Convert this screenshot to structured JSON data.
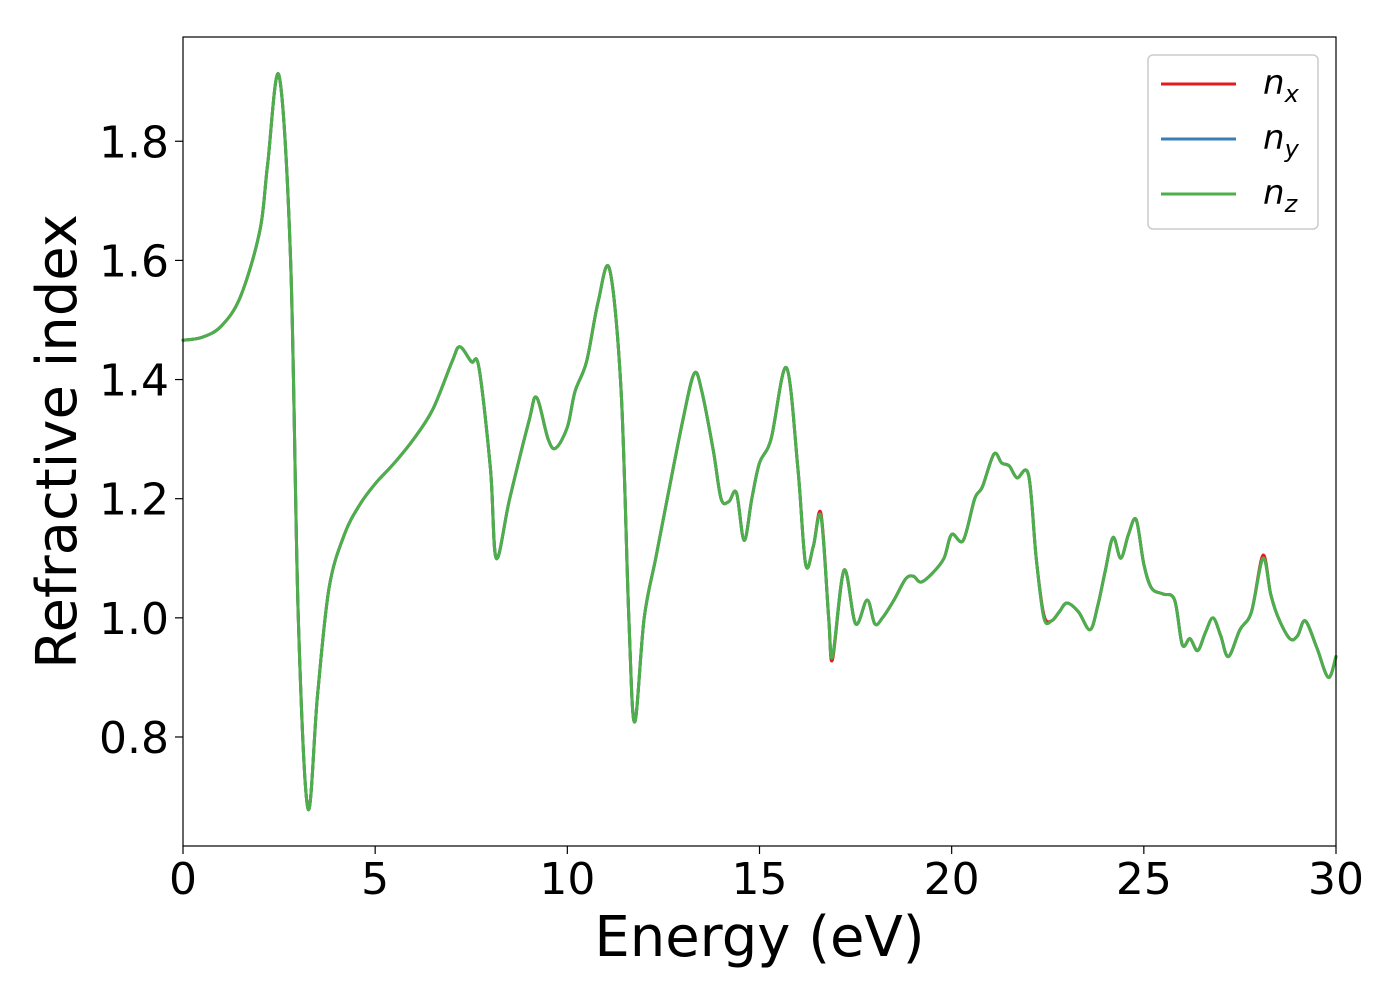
{
  "chart_data": {
    "type": "line",
    "xlabel": "Energy (eV)",
    "ylabel": "Refractive index",
    "xlim": [
      0,
      30
    ],
    "ylim": [
      0.617,
      1.975
    ],
    "xticks": [
      0,
      5,
      10,
      15,
      20,
      25,
      30
    ],
    "xtick_labels": [
      "0",
      "5",
      "10",
      "15",
      "20",
      "25",
      "30"
    ],
    "yticks": [
      0.8,
      1.0,
      1.2,
      1.4,
      1.6,
      1.8
    ],
    "ytick_labels": [
      "0.8",
      "1.0",
      "1.2",
      "1.4",
      "1.6",
      "1.8"
    ],
    "grid": false,
    "legend_position": "top-right",
    "series": [
      {
        "name": "n_x",
        "label_base": "n",
        "label_sub": "x",
        "color": "#e41a1c",
        "x": [
          0,
          0.5,
          1.0,
          1.5,
          2.0,
          2.2,
          2.5,
          2.8,
          3.0,
          3.25,
          3.5,
          3.8,
          4.2,
          4.6,
          5.0,
          5.5,
          6.0,
          6.5,
          7.0,
          7.2,
          7.5,
          7.7,
          8.0,
          8.15,
          8.5,
          9.0,
          9.2,
          9.5,
          9.7,
          10.0,
          10.2,
          10.5,
          10.8,
          11.1,
          11.4,
          11.6,
          11.75,
          12.0,
          12.3,
          12.6,
          13.0,
          13.3,
          13.5,
          13.8,
          14.0,
          14.2,
          14.4,
          14.6,
          14.8,
          15.0,
          15.3,
          15.7,
          16.0,
          16.2,
          16.4,
          16.6,
          16.8,
          16.9,
          17.2,
          17.5,
          17.8,
          18.0,
          18.2,
          18.5,
          18.8,
          19.0,
          19.2,
          19.5,
          19.8,
          20.0,
          20.3,
          20.6,
          20.8,
          21.1,
          21.3,
          21.5,
          21.7,
          22.0,
          22.2,
          22.4,
          22.6,
          22.8,
          23.0,
          23.3,
          23.6,
          23.8,
          24.0,
          24.2,
          24.4,
          24.6,
          24.8,
          25.0,
          25.2,
          25.5,
          25.8,
          26.0,
          26.2,
          26.4,
          26.6,
          26.8,
          27.0,
          27.2,
          27.5,
          27.8,
          28.1,
          28.3,
          28.5,
          28.8,
          29.0,
          29.2,
          29.5,
          29.8,
          30.0
        ],
        "y": [
          1.466,
          1.471,
          1.49,
          1.54,
          1.65,
          1.76,
          1.91,
          1.6,
          1.0,
          0.68,
          0.87,
          1.05,
          1.14,
          1.19,
          1.225,
          1.26,
          1.3,
          1.35,
          1.43,
          1.455,
          1.43,
          1.42,
          1.25,
          1.1,
          1.2,
          1.33,
          1.37,
          1.3,
          1.285,
          1.32,
          1.38,
          1.43,
          1.53,
          1.585,
          1.38,
          1.0,
          0.825,
          1.0,
          1.1,
          1.2,
          1.33,
          1.41,
          1.38,
          1.28,
          1.2,
          1.195,
          1.21,
          1.13,
          1.2,
          1.26,
          1.3,
          1.42,
          1.25,
          1.09,
          1.12,
          1.175,
          1.0,
          0.93,
          1.08,
          0.99,
          1.03,
          0.99,
          1.0,
          1.03,
          1.065,
          1.07,
          1.06,
          1.075,
          1.1,
          1.14,
          1.13,
          1.2,
          1.22,
          1.275,
          1.26,
          1.255,
          1.235,
          1.24,
          1.1,
          1.005,
          0.995,
          1.01,
          1.025,
          1.01,
          0.98,
          1.02,
          1.08,
          1.135,
          1.1,
          1.14,
          1.165,
          1.09,
          1.05,
          1.04,
          1.03,
          0.955,
          0.965,
          0.945,
          0.975,
          1.0,
          0.97,
          0.935,
          0.98,
          1.01,
          1.105,
          1.04,
          1.0,
          0.965,
          0.97,
          0.995,
          0.95,
          0.9,
          0.935
        ]
      },
      {
        "name": "n_y",
        "label_base": "n",
        "label_sub": "y",
        "color": "#377eb8",
        "x": [
          0,
          0.5,
          1.0,
          1.5,
          2.0,
          2.2,
          2.5,
          2.8,
          3.0,
          3.25,
          3.5,
          3.8,
          4.2,
          4.6,
          5.0,
          5.5,
          6.0,
          6.5,
          7.0,
          7.2,
          7.5,
          7.7,
          8.0,
          8.15,
          8.5,
          9.0,
          9.2,
          9.5,
          9.7,
          10.0,
          10.2,
          10.5,
          10.8,
          11.1,
          11.4,
          11.6,
          11.75,
          12.0,
          12.3,
          12.6,
          13.0,
          13.3,
          13.5,
          13.8,
          14.0,
          14.2,
          14.4,
          14.6,
          14.8,
          15.0,
          15.3,
          15.7,
          16.0,
          16.2,
          16.4,
          16.6,
          16.8,
          16.9,
          17.2,
          17.5,
          17.8,
          18.0,
          18.2,
          18.5,
          18.8,
          19.0,
          19.2,
          19.5,
          19.8,
          20.0,
          20.3,
          20.6,
          20.8,
          21.1,
          21.3,
          21.5,
          21.7,
          22.0,
          22.2,
          22.4,
          22.6,
          22.8,
          23.0,
          23.3,
          23.6,
          23.8,
          24.0,
          24.2,
          24.4,
          24.6,
          24.8,
          25.0,
          25.2,
          25.5,
          25.8,
          26.0,
          26.2,
          26.4,
          26.6,
          26.8,
          27.0,
          27.2,
          27.5,
          27.8,
          28.1,
          28.3,
          28.5,
          28.8,
          29.0,
          29.2,
          29.5,
          29.8,
          30.0
        ],
        "y": [
          1.466,
          1.471,
          1.49,
          1.54,
          1.65,
          1.76,
          1.91,
          1.6,
          1.0,
          0.68,
          0.87,
          1.05,
          1.14,
          1.19,
          1.225,
          1.26,
          1.3,
          1.35,
          1.43,
          1.455,
          1.43,
          1.42,
          1.25,
          1.1,
          1.2,
          1.33,
          1.37,
          1.3,
          1.285,
          1.32,
          1.38,
          1.43,
          1.53,
          1.585,
          1.38,
          1.0,
          0.825,
          1.0,
          1.1,
          1.2,
          1.33,
          1.41,
          1.38,
          1.28,
          1.2,
          1.195,
          1.21,
          1.13,
          1.2,
          1.26,
          1.3,
          1.42,
          1.25,
          1.09,
          1.12,
          1.17,
          1.0,
          0.935,
          1.08,
          0.99,
          1.03,
          0.99,
          1.0,
          1.03,
          1.065,
          1.07,
          1.06,
          1.075,
          1.1,
          1.14,
          1.13,
          1.2,
          1.22,
          1.275,
          1.26,
          1.255,
          1.235,
          1.24,
          1.1,
          1.0,
          0.995,
          1.01,
          1.025,
          1.01,
          0.98,
          1.02,
          1.08,
          1.135,
          1.1,
          1.14,
          1.165,
          1.09,
          1.05,
          1.04,
          1.03,
          0.955,
          0.965,
          0.945,
          0.975,
          1.0,
          0.97,
          0.935,
          0.98,
          1.01,
          1.1,
          1.04,
          1.0,
          0.965,
          0.97,
          0.995,
          0.95,
          0.9,
          0.935
        ]
      },
      {
        "name": "n_z",
        "label_base": "n",
        "label_sub": "z",
        "color": "#4daf4a",
        "x": [
          0,
          0.5,
          1.0,
          1.5,
          2.0,
          2.2,
          2.5,
          2.8,
          3.0,
          3.25,
          3.5,
          3.8,
          4.2,
          4.6,
          5.0,
          5.5,
          6.0,
          6.5,
          7.0,
          7.2,
          7.5,
          7.7,
          8.0,
          8.15,
          8.5,
          9.0,
          9.2,
          9.5,
          9.7,
          10.0,
          10.2,
          10.5,
          10.8,
          11.1,
          11.4,
          11.6,
          11.75,
          12.0,
          12.3,
          12.6,
          13.0,
          13.3,
          13.5,
          13.8,
          14.0,
          14.2,
          14.4,
          14.6,
          14.8,
          15.0,
          15.3,
          15.7,
          16.0,
          16.2,
          16.4,
          16.6,
          16.8,
          16.9,
          17.2,
          17.5,
          17.8,
          18.0,
          18.2,
          18.5,
          18.8,
          19.0,
          19.2,
          19.5,
          19.8,
          20.0,
          20.3,
          20.6,
          20.8,
          21.1,
          21.3,
          21.5,
          21.7,
          22.0,
          22.2,
          22.4,
          22.6,
          22.8,
          23.0,
          23.3,
          23.6,
          23.8,
          24.0,
          24.2,
          24.4,
          24.6,
          24.8,
          25.0,
          25.2,
          25.5,
          25.8,
          26.0,
          26.2,
          26.4,
          26.6,
          26.8,
          27.0,
          27.2,
          27.5,
          27.8,
          28.1,
          28.3,
          28.5,
          28.8,
          29.0,
          29.2,
          29.5,
          29.8,
          30.0
        ],
        "y": [
          1.466,
          1.471,
          1.49,
          1.54,
          1.65,
          1.76,
          1.91,
          1.6,
          1.0,
          0.68,
          0.87,
          1.05,
          1.14,
          1.19,
          1.225,
          1.26,
          1.3,
          1.35,
          1.43,
          1.455,
          1.43,
          1.42,
          1.25,
          1.1,
          1.2,
          1.33,
          1.37,
          1.3,
          1.285,
          1.32,
          1.38,
          1.43,
          1.53,
          1.585,
          1.38,
          1.0,
          0.825,
          1.0,
          1.1,
          1.2,
          1.33,
          1.41,
          1.38,
          1.28,
          1.2,
          1.195,
          1.21,
          1.13,
          1.2,
          1.26,
          1.3,
          1.42,
          1.25,
          1.09,
          1.12,
          1.17,
          1.0,
          0.935,
          1.08,
          0.99,
          1.03,
          0.99,
          1.0,
          1.03,
          1.065,
          1.07,
          1.06,
          1.075,
          1.1,
          1.14,
          1.13,
          1.2,
          1.22,
          1.275,
          1.26,
          1.255,
          1.235,
          1.24,
          1.1,
          1.0,
          0.995,
          1.01,
          1.025,
          1.01,
          0.98,
          1.02,
          1.08,
          1.135,
          1.1,
          1.14,
          1.165,
          1.09,
          1.05,
          1.04,
          1.03,
          0.955,
          0.965,
          0.945,
          0.975,
          1.0,
          0.97,
          0.935,
          0.98,
          1.01,
          1.1,
          1.04,
          1.0,
          0.965,
          0.97,
          0.995,
          0.95,
          0.9,
          0.935
        ]
      }
    ]
  }
}
